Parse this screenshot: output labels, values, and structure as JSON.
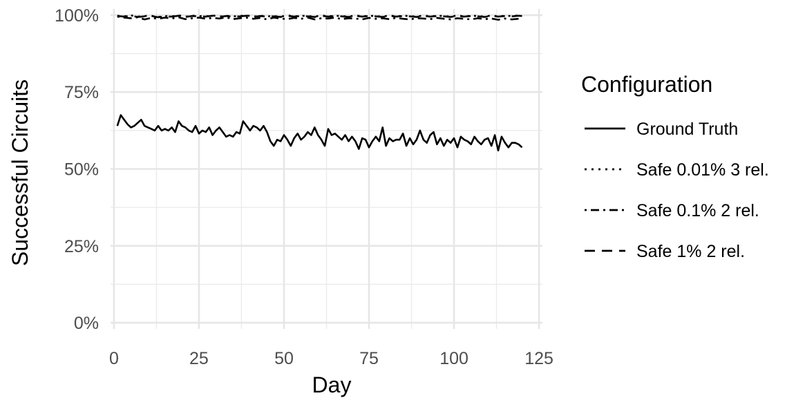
{
  "chart_data": {
    "type": "line",
    "xlabel": "Day",
    "ylabel": "Successful Circuits",
    "xlim": [
      -1,
      126
    ],
    "ylim": [
      -2,
      102
    ],
    "xticks": [
      0,
      25,
      50,
      75,
      100,
      125
    ],
    "xtick_labels": [
      "0",
      "25",
      "50",
      "75",
      "100",
      "125"
    ],
    "yticks": [
      0,
      25,
      50,
      75,
      100
    ],
    "ytick_labels": [
      "0%",
      "25%",
      "50%",
      "75%",
      "100%"
    ],
    "grid": true,
    "legend": {
      "title": "Configuration",
      "position": "right"
    },
    "series": [
      {
        "name": "Ground Truth",
        "linetype": "solid",
        "color": "#000000",
        "x": [
          1,
          2,
          3,
          4,
          5,
          6,
          7,
          8,
          9,
          10,
          11,
          12,
          13,
          14,
          15,
          16,
          17,
          18,
          19,
          20,
          21,
          22,
          23,
          24,
          25,
          26,
          27,
          28,
          29,
          30,
          31,
          32,
          33,
          34,
          35,
          36,
          37,
          38,
          39,
          40,
          41,
          42,
          43,
          44,
          45,
          46,
          47,
          48,
          49,
          50,
          51,
          52,
          53,
          54,
          55,
          56,
          57,
          58,
          59,
          60,
          61,
          62,
          63,
          64,
          65,
          66,
          67,
          68,
          69,
          70,
          71,
          72,
          73,
          74,
          75,
          76,
          77,
          78,
          79,
          80,
          81,
          82,
          83,
          84,
          85,
          86,
          87,
          88,
          89,
          90,
          91,
          92,
          93,
          94,
          95,
          96,
          97,
          98,
          99,
          100,
          101,
          102,
          103,
          104,
          105,
          106,
          107,
          108,
          109,
          110,
          111,
          112,
          113,
          114,
          115,
          116,
          117,
          118,
          119,
          120
        ],
        "y": [
          64,
          67.5,
          66,
          64.5,
          63.5,
          64,
          65,
          66,
          64,
          63.5,
          63,
          62.5,
          64,
          62.5,
          63,
          62.5,
          63.5,
          62,
          65.5,
          64,
          63.5,
          62.5,
          62,
          64,
          61.5,
          62.5,
          62,
          63.5,
          61,
          62.5,
          63.5,
          62,
          60.5,
          61,
          60.5,
          62,
          61.5,
          65.5,
          64,
          62.5,
          64,
          63.5,
          62.5,
          64,
          62,
          59,
          57.5,
          59.5,
          59,
          61,
          59.5,
          57.5,
          60,
          61.5,
          59.5,
          60.5,
          62,
          61,
          63.5,
          61,
          59.5,
          57.5,
          63,
          61,
          61.5,
          60.5,
          59.5,
          61,
          59,
          60.5,
          59,
          56.5,
          60,
          59.5,
          57,
          59,
          60.5,
          59,
          63.5,
          57.5,
          60,
          59,
          59.5,
          59.5,
          61.5,
          57.5,
          60,
          58,
          59.5,
          62.5,
          59.5,
          58.5,
          61,
          62,
          58,
          60,
          57.5,
          59.5,
          58.5,
          60,
          57,
          60.5,
          59.5,
          59,
          58,
          60.5,
          59,
          58,
          59.5,
          60,
          57.5,
          61,
          56,
          60.5,
          58.5,
          57,
          58.5,
          58.5,
          58,
          57
        ]
      },
      {
        "name": "Safe 0.01% 3 rel.",
        "linetype": "dotted",
        "color": "#000000",
        "x": [
          1,
          3,
          5,
          7,
          9,
          11,
          13,
          15,
          17,
          19,
          21,
          23,
          25,
          27,
          29,
          31,
          33,
          35,
          37,
          39,
          41,
          43,
          45,
          47,
          49,
          51,
          53,
          55,
          57,
          59,
          61,
          63,
          65,
          67,
          69,
          71,
          73,
          75,
          77,
          79,
          81,
          83,
          85,
          87,
          89,
          91,
          93,
          95,
          97,
          99,
          101,
          103,
          105,
          107,
          109,
          111,
          113,
          115,
          117,
          119,
          120
        ],
        "y": [
          99.8,
          99.6,
          99.9,
          99.5,
          99.7,
          99.8,
          99.4,
          99.7,
          99.6,
          99.9,
          99.5,
          99.8,
          99.7,
          99.6,
          99.9,
          99.5,
          99.8,
          99.6,
          99.7,
          99.9,
          99.5,
          99.8,
          99.6,
          99.7,
          99.5,
          99.9,
          99.6,
          99.8,
          99.7,
          99.5,
          99.9,
          99.6,
          99.8,
          99.7,
          99.5,
          99.9,
          99.6,
          99.8,
          99.7,
          99.5,
          99.9,
          99.6,
          99.8,
          99.7,
          99.5,
          99.9,
          99.6,
          99.8,
          99.7,
          99.5,
          99.9,
          99.6,
          99.8,
          99.7,
          99.5,
          99.9,
          99.6,
          99.8,
          99.7,
          99.9,
          99.8
        ]
      },
      {
        "name": "Safe 0.1% 2 rel.",
        "linetype": "dotdash",
        "color": "#000000",
        "x": [
          1,
          3,
          5,
          7,
          9,
          11,
          13,
          15,
          17,
          19,
          21,
          23,
          25,
          27,
          29,
          31,
          33,
          35,
          37,
          39,
          41,
          43,
          45,
          47,
          49,
          51,
          53,
          55,
          57,
          59,
          61,
          63,
          65,
          67,
          69,
          71,
          73,
          75,
          77,
          79,
          81,
          83,
          85,
          87,
          89,
          91,
          93,
          95,
          97,
          99,
          101,
          103,
          105,
          107,
          109,
          111,
          113,
          115,
          117,
          119,
          120
        ],
        "y": [
          99.5,
          99.2,
          99,
          99.3,
          98.6,
          99.1,
          98.8,
          99.2,
          98.9,
          99.3,
          98.7,
          99,
          99.2,
          98.8,
          99.1,
          98.9,
          99.3,
          98.7,
          99,
          99.2,
          98.8,
          99.1,
          98.6,
          99.2,
          98.9,
          98.7,
          99.1,
          98.8,
          99.2,
          98.6,
          99,
          98.9,
          99.2,
          98.7,
          99,
          98.9,
          98.6,
          99.1,
          98.8,
          99,
          98.7,
          99.1,
          98.8,
          98.6,
          99,
          98.9,
          98.7,
          99.1,
          98.8,
          98.6,
          99,
          98.8,
          98.6,
          99,
          98.7,
          98.9,
          98.5,
          98.9,
          98.6,
          98.8,
          98.7
        ]
      },
      {
        "name": "Safe 1% 2 rel.",
        "linetype": "longdash",
        "color": "#000000",
        "x": [
          1,
          3,
          5,
          7,
          9,
          11,
          13,
          15,
          17,
          19,
          21,
          23,
          25,
          27,
          29,
          31,
          33,
          35,
          37,
          39,
          41,
          43,
          45,
          47,
          49,
          51,
          53,
          55,
          57,
          59,
          61,
          63,
          65,
          67,
          69,
          71,
          73,
          75,
          77,
          79,
          81,
          83,
          85,
          87,
          89,
          91,
          93,
          95,
          97,
          99,
          101,
          103,
          105,
          107,
          109,
          111,
          113,
          115,
          117,
          119,
          120
        ],
        "y": [
          99.7,
          99.5,
          99.8,
          99.4,
          99.6,
          99.7,
          99.3,
          99.6,
          99.5,
          99.8,
          99.4,
          99.7,
          99.6,
          99.5,
          99.8,
          99.4,
          99.7,
          99.5,
          99.6,
          99.8,
          99.4,
          99.7,
          99.5,
          99.6,
          99.4,
          99.8,
          99.5,
          99.7,
          99.6,
          99.4,
          99.8,
          99.5,
          99.7,
          99.6,
          99.4,
          99.8,
          99.5,
          99.7,
          99.6,
          99.4,
          99.8,
          99.5,
          99.7,
          99.6,
          99.4,
          99.8,
          99.5,
          99.7,
          99.6,
          99.4,
          99.8,
          99.5,
          99.7,
          99.6,
          99.4,
          99.8,
          99.5,
          99.7,
          99.6,
          99.8,
          99.7
        ]
      }
    ]
  }
}
